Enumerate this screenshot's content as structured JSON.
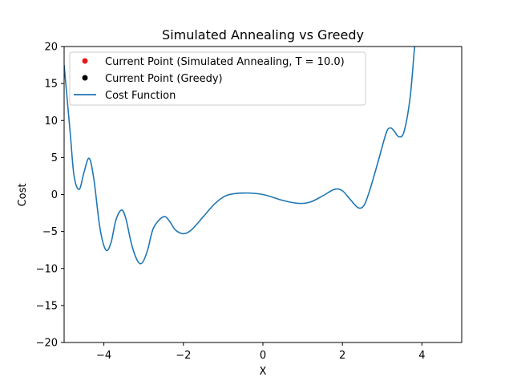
{
  "chart_data": {
    "type": "line",
    "title": "Simulated Annealing vs Greedy",
    "xlabel": "X",
    "ylabel": "Cost",
    "xlim": [
      -5,
      5
    ],
    "ylim": [
      -20,
      20
    ],
    "xticks": [
      -4,
      -2,
      0,
      2,
      4
    ],
    "yticks": [
      -20,
      -15,
      -10,
      -5,
      0,
      5,
      10,
      15,
      20
    ],
    "grid": false,
    "legend_position": "top-left",
    "legend": [
      {
        "label": "Current Point (Simulated Annealing, T = 10.0)",
        "marker": "dot",
        "color": "#e41a1c"
      },
      {
        "label": "Current Point (Greedy)",
        "marker": "dot",
        "color": "#000000"
      },
      {
        "label": "Cost Function",
        "marker": "line",
        "color": "#1f77b4"
      }
    ],
    "series": [
      {
        "name": "Cost Function",
        "color": "#1f77b4",
        "points": [
          [
            -5.0,
            17.5
          ],
          [
            -4.85,
            8.5
          ],
          [
            -4.75,
            2.5
          ],
          [
            -4.62,
            0.7
          ],
          [
            -4.5,
            3.0
          ],
          [
            -4.37,
            4.9
          ],
          [
            -4.25,
            2.0
          ],
          [
            -4.1,
            -4.5
          ],
          [
            -3.95,
            -7.5
          ],
          [
            -3.82,
            -6.5
          ],
          [
            -3.7,
            -3.5
          ],
          [
            -3.56,
            -2.1
          ],
          [
            -3.45,
            -3.2
          ],
          [
            -3.3,
            -6.8
          ],
          [
            -3.15,
            -9.0
          ],
          [
            -3.03,
            -9.2
          ],
          [
            -2.9,
            -7.5
          ],
          [
            -2.75,
            -4.5
          ],
          [
            -2.5,
            -3.0
          ],
          [
            -2.35,
            -3.6
          ],
          [
            -2.2,
            -4.8
          ],
          [
            -2.0,
            -5.3
          ],
          [
            -1.8,
            -4.8
          ],
          [
            -1.5,
            -3.0
          ],
          [
            -1.2,
            -1.2
          ],
          [
            -0.9,
            -0.1
          ],
          [
            -0.5,
            0.2
          ],
          [
            0.0,
            0.0
          ],
          [
            0.5,
            -0.8
          ],
          [
            0.9,
            -1.2
          ],
          [
            1.2,
            -1.0
          ],
          [
            1.5,
            -0.2
          ],
          [
            1.8,
            0.7
          ],
          [
            2.0,
            0.5
          ],
          [
            2.2,
            -0.7
          ],
          [
            2.4,
            -1.8
          ],
          [
            2.55,
            -1.4
          ],
          [
            2.7,
            0.8
          ],
          [
            2.9,
            4.5
          ],
          [
            3.1,
            8.3
          ],
          [
            3.2,
            9.0
          ],
          [
            3.3,
            8.6
          ],
          [
            3.42,
            7.8
          ],
          [
            3.55,
            8.5
          ],
          [
            3.7,
            13.0
          ],
          [
            3.8,
            19.0
          ],
          [
            3.82,
            20.0
          ]
        ]
      }
    ]
  }
}
